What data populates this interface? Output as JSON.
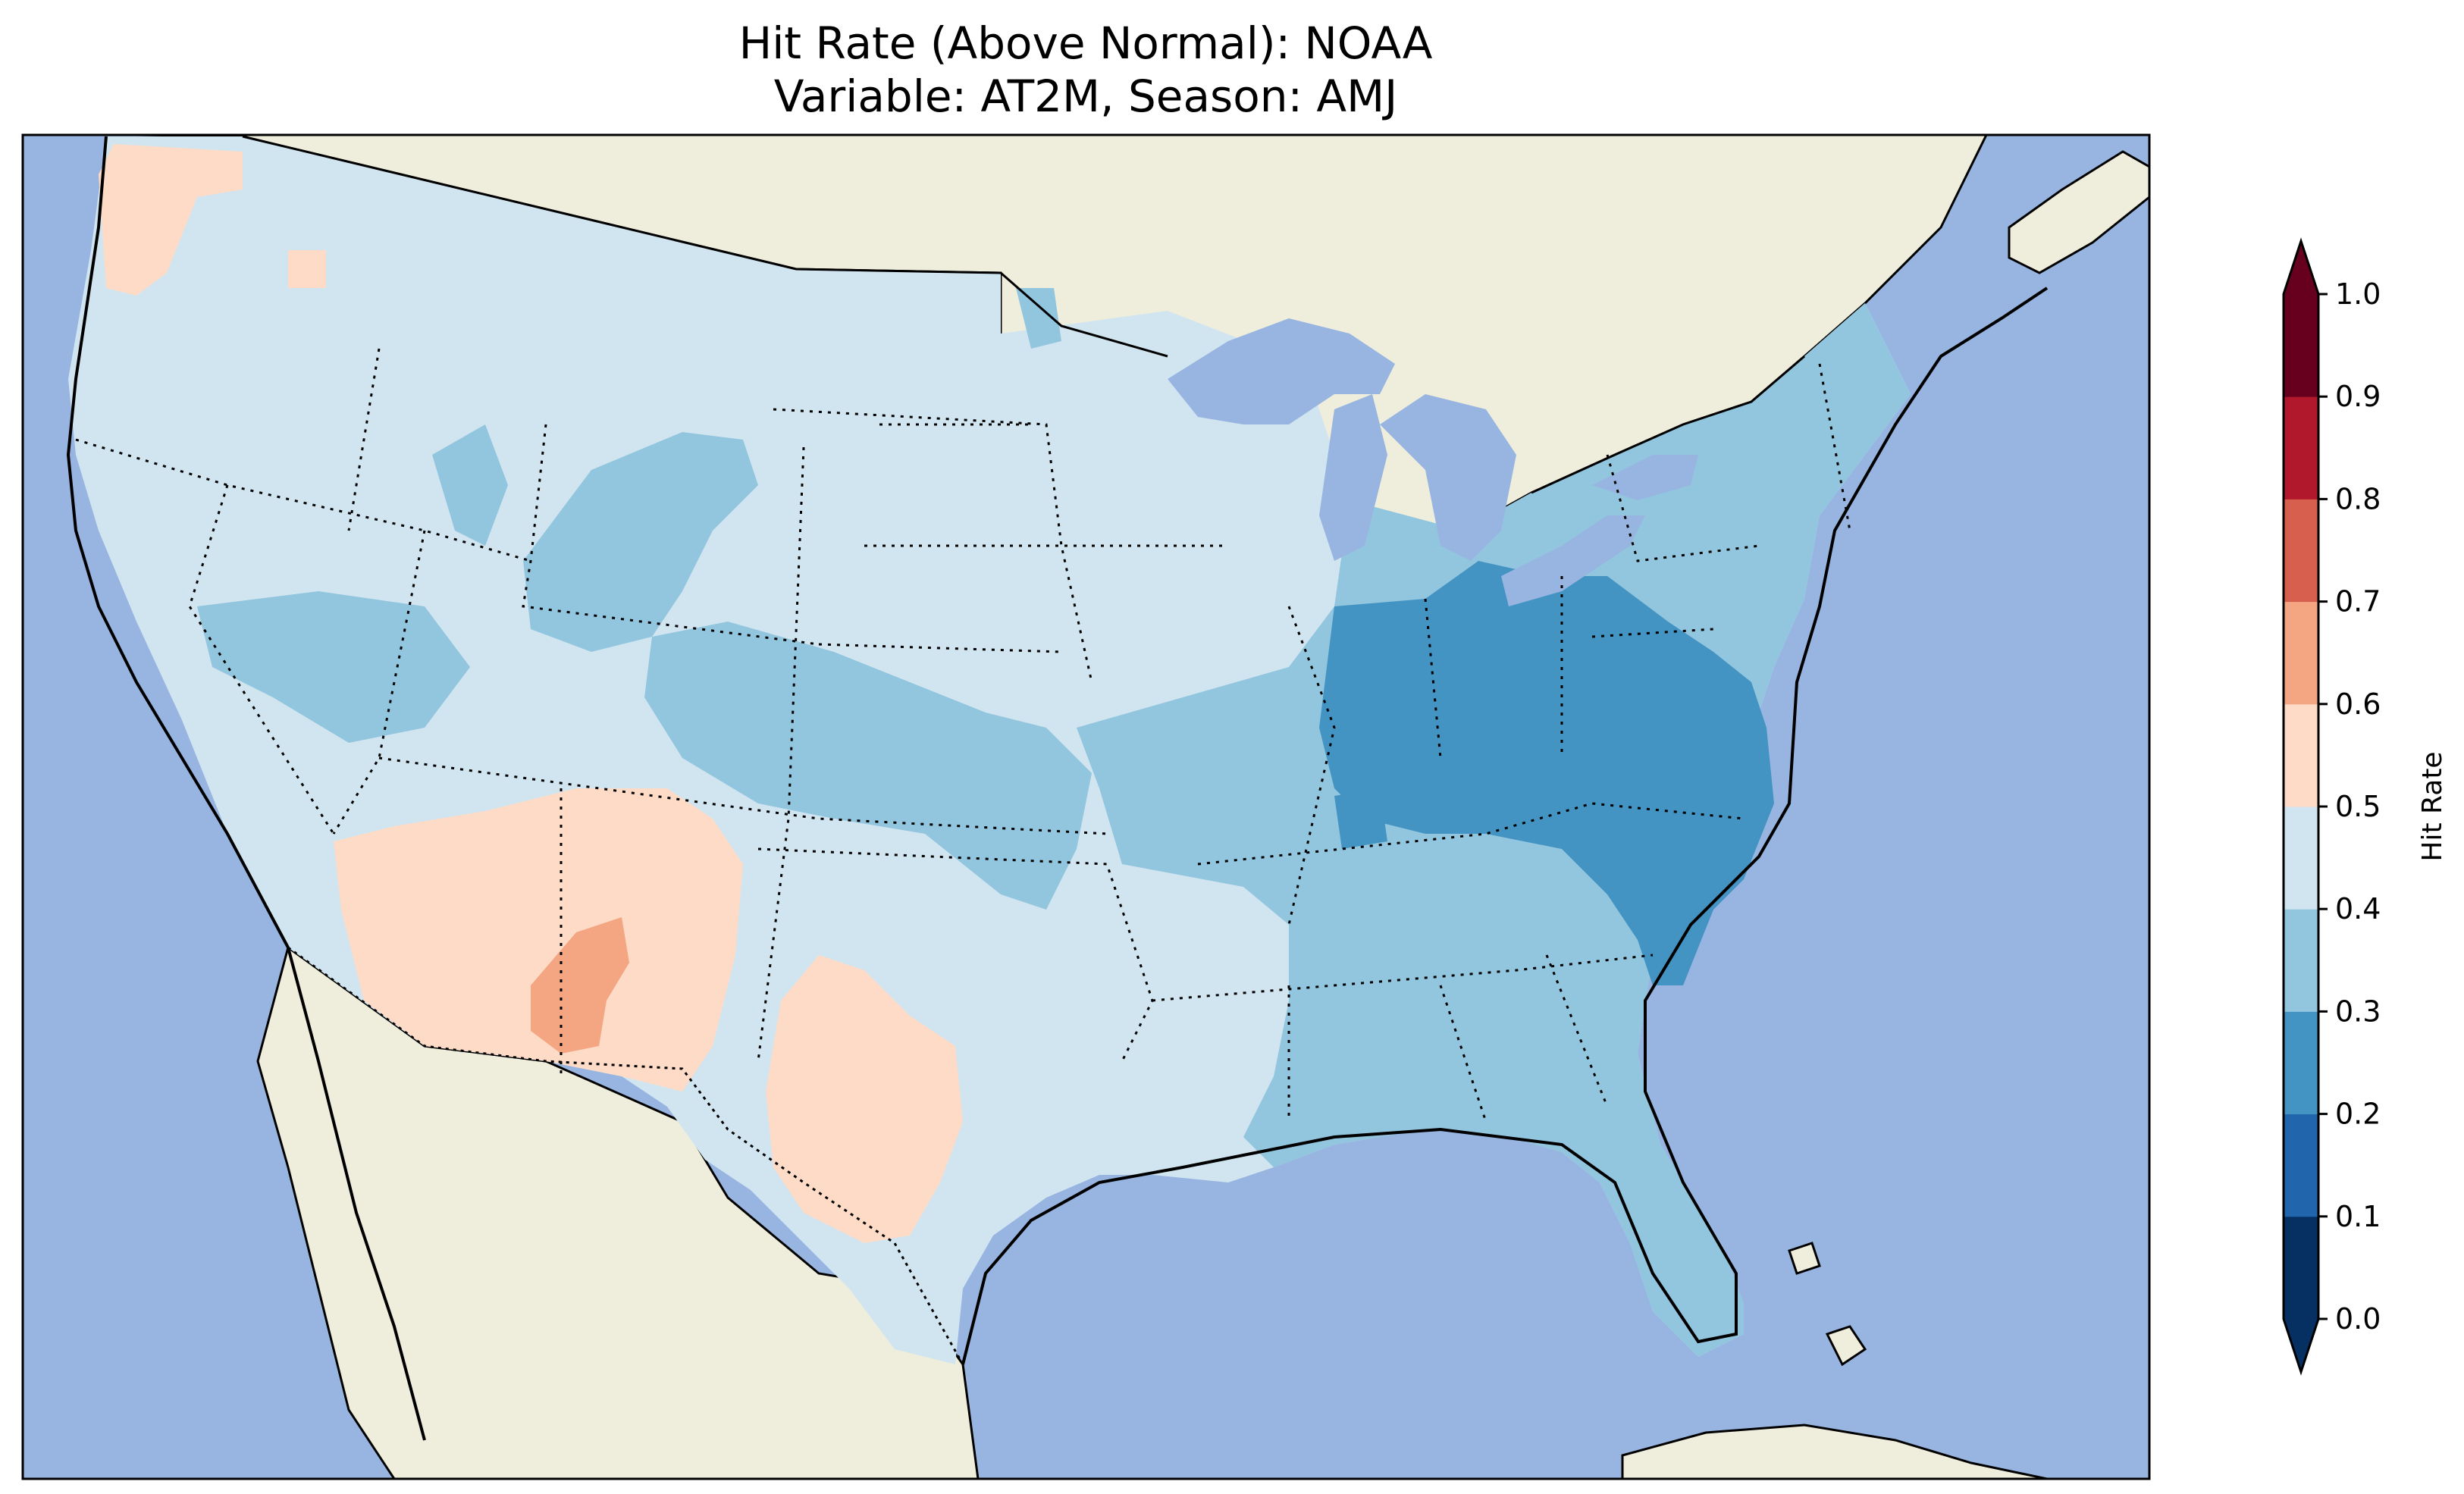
{
  "title": {
    "line1": "Hit Rate (Above Normal): NOAA",
    "line2": "Variable: AT2M, Season: AMJ"
  },
  "map": {
    "region": "Contiguous United States",
    "ocean_color": "#97b5e0",
    "land_color": "#efeedc",
    "dominant_values": {
      "west_and_plains": "0.4-0.5",
      "midwest_and_east": "0.3-0.4",
      "ohio_valley_virginia_carolinas": "0.2-0.3",
      "arizona_new_mexico_west_texas": "0.5-0.6",
      "new_mexico_core": "0.6-0.7"
    }
  },
  "colorbar": {
    "label": "Hit Rate",
    "extend": "both",
    "ticks": [
      "0.0",
      "0.1",
      "0.2",
      "0.3",
      "0.4",
      "0.5",
      "0.6",
      "0.7",
      "0.8",
      "0.9",
      "1.0"
    ],
    "bin_colors": [
      "#053061",
      "#2166ac",
      "#4393c3",
      "#92c5de",
      "#d1e5f0",
      "#fddbc7",
      "#f4a582",
      "#d6604d",
      "#b2182b",
      "#67001f"
    ],
    "under_color": "#053061",
    "over_color": "#67001f"
  }
}
